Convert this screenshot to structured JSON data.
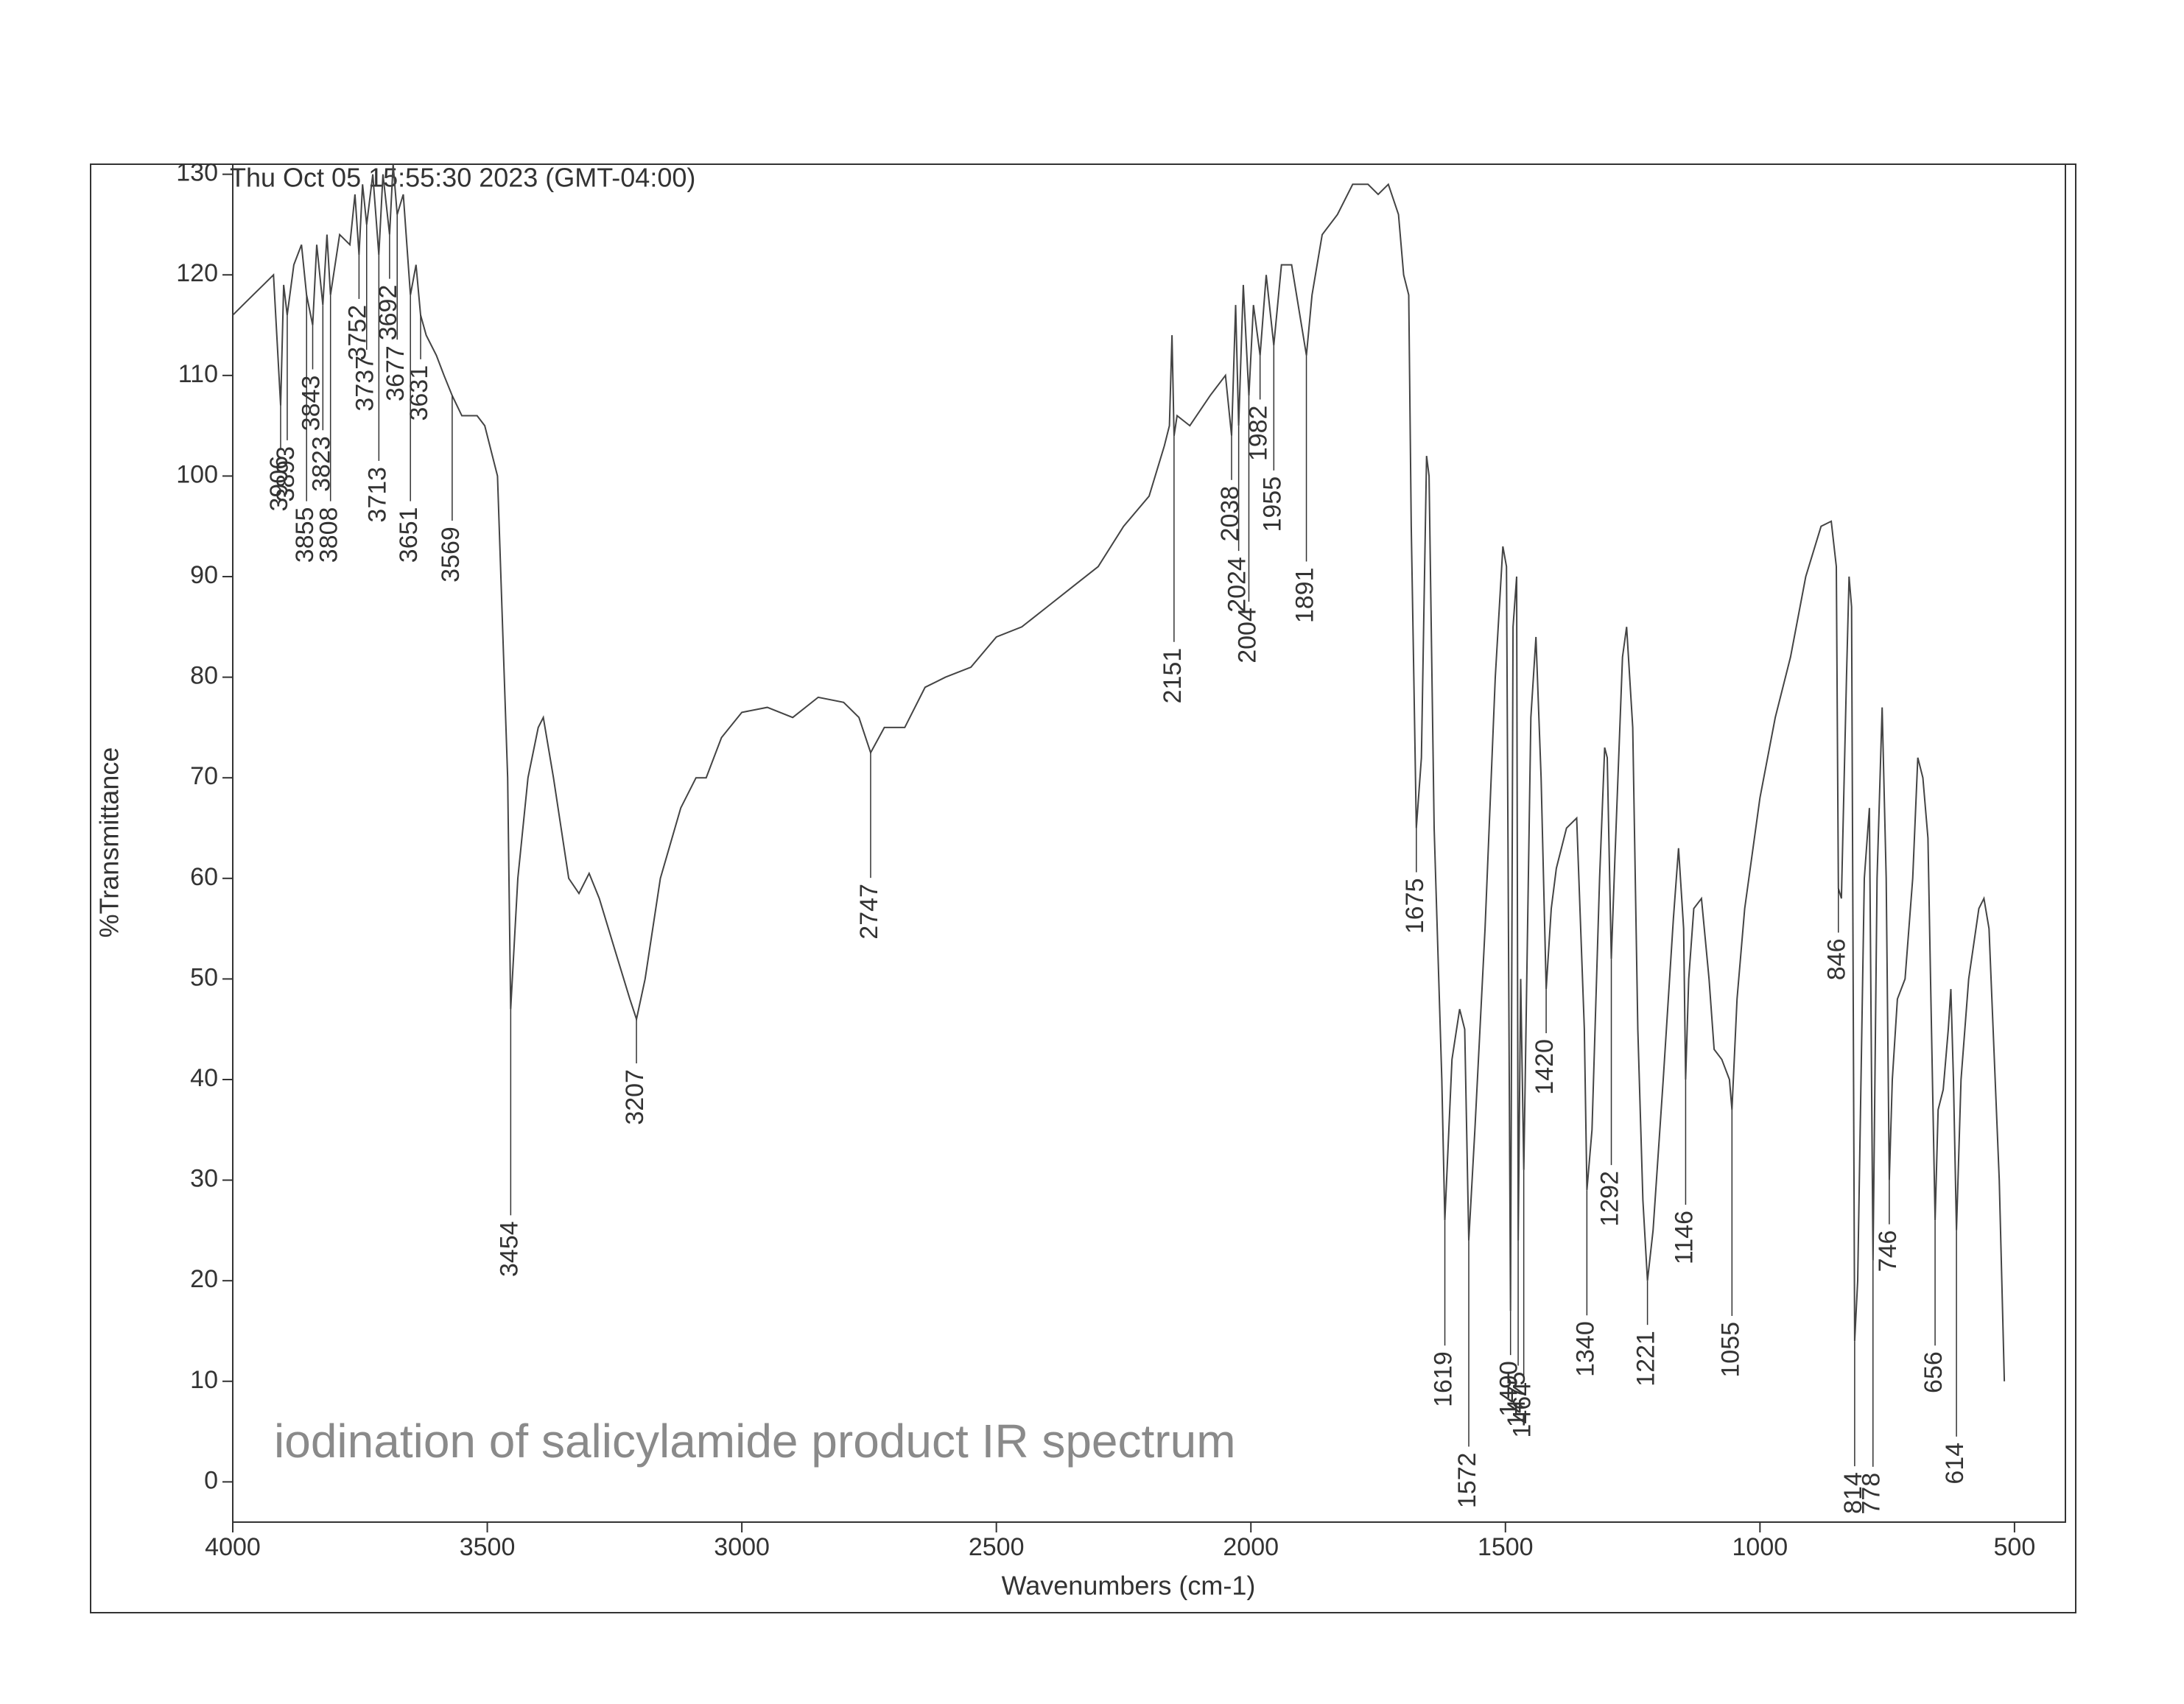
{
  "chart_data": {
    "type": "line",
    "title": "iodination of salicylamide product IR spectrum",
    "subtitle": "Thu Oct 05 15:55:30 2023 (GMT-04:00)",
    "xlabel": "Wavenumbers (cm-1)",
    "ylabel": "%Transmittance",
    "color": "#444444",
    "xlim": [
      4000,
      400
    ],
    "ylim": [
      -4,
      131
    ],
    "xticks": [
      4000,
      3500,
      3000,
      2500,
      2000,
      1500,
      1000,
      500
    ],
    "yticks": [
      0,
      10,
      20,
      30,
      40,
      50,
      60,
      70,
      80,
      90,
      100,
      110,
      120,
      130
    ],
    "x": [
      4000,
      3980,
      3960,
      3940,
      3920,
      3906,
      3900,
      3893,
      3880,
      3865,
      3855,
      3843,
      3835,
      3823,
      3815,
      3808,
      3790,
      3770,
      3760,
      3752,
      3745,
      3737,
      3725,
      3713,
      3705,
      3692,
      3685,
      3677,
      3665,
      3651,
      3640,
      3631,
      3620,
      3600,
      3585,
      3569,
      3550,
      3520,
      3505,
      3480,
      3460,
      3454,
      3440,
      3420,
      3400,
      3390,
      3370,
      3340,
      3320,
      3300,
      3280,
      3250,
      3220,
      3207,
      3190,
      3160,
      3120,
      3090,
      3070,
      3040,
      3000,
      2950,
      2900,
      2850,
      2800,
      2770,
      2747,
      2720,
      2680,
      2640,
      2600,
      2550,
      2500,
      2450,
      2400,
      2350,
      2300,
      2250,
      2200,
      2170,
      2160,
      2155,
      2151,
      2145,
      2120,
      2080,
      2050,
      2038,
      2030,
      2024,
      2015,
      2004,
      1995,
      1982,
      1970,
      1955,
      1940,
      1920,
      1891,
      1880,
      1860,
      1830,
      1800,
      1770,
      1750,
      1730,
      1710,
      1700,
      1690,
      1685,
      1680,
      1675,
      1665,
      1655,
      1650,
      1640,
      1625,
      1619,
      1605,
      1590,
      1580,
      1572,
      1560,
      1540,
      1520,
      1505,
      1498,
      1490,
      1485,
      1478,
      1475,
      1470,
      1464,
      1450,
      1440,
      1430,
      1420,
      1410,
      1400,
      1380,
      1360,
      1345,
      1340,
      1330,
      1315,
      1305,
      1300,
      1292,
      1285,
      1270,
      1262,
      1250,
      1240,
      1230,
      1221,
      1210,
      1190,
      1170,
      1160,
      1150,
      1146,
      1140,
      1130,
      1115,
      1100,
      1090,
      1075,
      1060,
      1055,
      1045,
      1030,
      1000,
      970,
      940,
      910,
      880,
      860,
      850,
      846,
      840,
      830,
      825,
      820,
      814,
      808,
      795,
      785,
      778,
      770,
      760,
      752,
      746,
      740,
      730,
      715,
      700,
      690,
      680,
      670,
      665,
      656,
      650,
      640,
      630,
      625,
      620,
      614,
      605,
      590,
      570,
      560,
      550,
      530,
      520
    ],
    "values": [
      116,
      117,
      118,
      119,
      120,
      107,
      119,
      116,
      121,
      123,
      118,
      115,
      123,
      117,
      124,
      118,
      124,
      123,
      128,
      122,
      129,
      125,
      130,
      122,
      130,
      124,
      131,
      126,
      128,
      118,
      121,
      116,
      114,
      112,
      110,
      108,
      106,
      106,
      105,
      100,
      70,
      47,
      60,
      70,
      75,
      76,
      70,
      60,
      58.5,
      60.5,
      58,
      53,
      48,
      46,
      50,
      60,
      67,
      70,
      70,
      74,
      76.5,
      77,
      76,
      78,
      77.5,
      76,
      72.5,
      75,
      75,
      79,
      80,
      81,
      84,
      85,
      87,
      89,
      91,
      95,
      98,
      103,
      105,
      114,
      104,
      106,
      105,
      108,
      110,
      104,
      117,
      105,
      119,
      108,
      117,
      112,
      120,
      113,
      121,
      121,
      112,
      118,
      124,
      126,
      129,
      129,
      128,
      129,
      126,
      120,
      118,
      95,
      80,
      65,
      72,
      102,
      100,
      65,
      40,
      26,
      42,
      47,
      45,
      24,
      35,
      55,
      80,
      93,
      91,
      17,
      85,
      90,
      24,
      50,
      31,
      76,
      84,
      70,
      49,
      57,
      61,
      65,
      66,
      45,
      29,
      35,
      60,
      73,
      72,
      52,
      62,
      82,
      85,
      75,
      45,
      28,
      20,
      25,
      40,
      56,
      63,
      55,
      40,
      50,
      57,
      58,
      50,
      43,
      42,
      40,
      37,
      48,
      57,
      68,
      76,
      82,
      90,
      95,
      95.5,
      91,
      59,
      58,
      80,
      90,
      87,
      14,
      20,
      60,
      67,
      22,
      60,
      77,
      60,
      30,
      40,
      48,
      50,
      60,
      72,
      70,
      64,
      50,
      26,
      37,
      39,
      45,
      49,
      40,
      25,
      40,
      50,
      57,
      58,
      55,
      30,
      10
    ],
    "peaks": [
      3906,
      3893,
      3855,
      3843,
      3823,
      3808,
      3752,
      3737,
      3713,
      3692,
      3677,
      3651,
      3631,
      3569,
      3454,
      3207,
      2747,
      2151,
      2038,
      2024,
      2004,
      1982,
      1955,
      1891,
      1675,
      1619,
      1572,
      1490,
      1475,
      1464,
      1420,
      1340,
      1292,
      1221,
      1146,
      1055,
      846,
      814,
      778,
      746,
      656,
      614
    ]
  }
}
